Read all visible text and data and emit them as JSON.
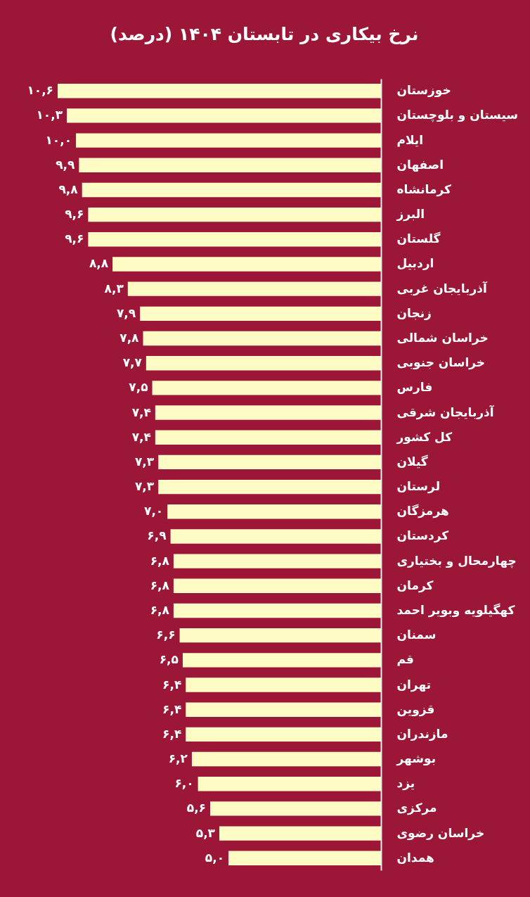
{
  "chart_data": {
    "type": "bar",
    "orientation": "horizontal",
    "title": "نرخ بیکاری در تابستان ۱۴۰۴ (درصد)",
    "categories": [
      "خوزستان",
      "سیستان و بلوچستان",
      "ایلام",
      "اصفهان",
      "کرمانشاه",
      "البرز",
      "گلستان",
      "اردبیل",
      "آذربایجان غربی",
      "زنجان",
      "خراسان شمالی",
      "خراسان جنوبی",
      "فارس",
      "آذربایجان شرقی",
      "کل کشور",
      "گیلان",
      "لرستان",
      "هرمزگان",
      "کردستان",
      "چهارمحال و بختیاری",
      "کرمان",
      "کهگیلویه وبویر احمد",
      "سمنان",
      "قم",
      "تهران",
      "قزوین",
      "مازندران",
      "بوشهر",
      "یزد",
      "مرکزی",
      "خراسان رضوی",
      "همدان"
    ],
    "values": [
      10.6,
      10.3,
      10.0,
      9.9,
      9.8,
      9.6,
      9.6,
      8.8,
      8.3,
      7.9,
      7.8,
      7.7,
      7.5,
      7.4,
      7.4,
      7.3,
      7.3,
      7.0,
      6.9,
      6.8,
      6.8,
      6.8,
      6.6,
      6.5,
      6.4,
      6.4,
      6.4,
      6.2,
      6.0,
      5.6,
      5.3,
      5.0
    ],
    "value_labels": [
      "۱۰,۶",
      "۱۰,۳",
      "۱۰,۰",
      "۹,۹",
      "۹,۸",
      "۹,۶",
      "۹,۶",
      "۸,۸",
      "۸,۳",
      "۷,۹",
      "۷,۸",
      "۷,۷",
      "۷,۵",
      "۷,۴",
      "۷,۴",
      "۷,۳",
      "۷,۳",
      "۷,۰",
      "۶,۹",
      "۶,۸",
      "۶,۸",
      "۶,۸",
      "۶,۶",
      "۶,۵",
      "۶,۴",
      "۶,۴",
      "۶,۴",
      "۶,۲",
      "۶,۰",
      "۵,۶",
      "۵,۳",
      "۵,۰"
    ],
    "color": "#fefbc5"
  }
}
